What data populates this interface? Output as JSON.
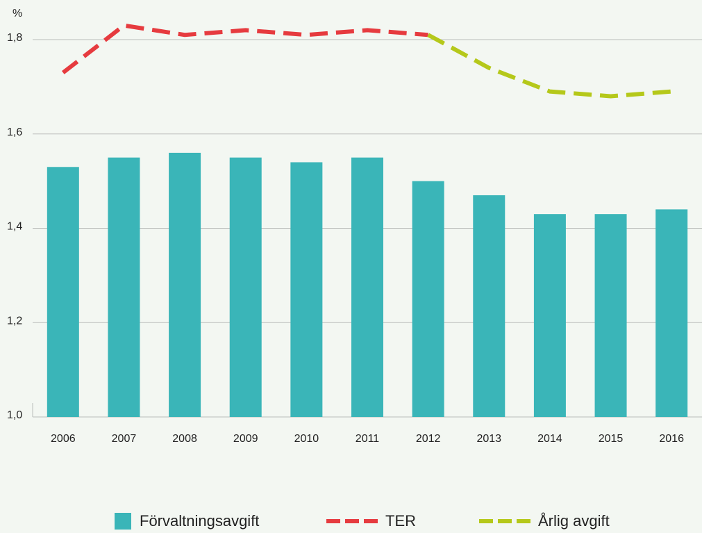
{
  "chart_data": {
    "type": "bar_line",
    "unit_label": "%",
    "categories": [
      "2006",
      "2007",
      "2008",
      "2009",
      "2010",
      "2011",
      "2012",
      "2013",
      "2014",
      "2015",
      "2016"
    ],
    "series": [
      {
        "name": "Förvaltningsavgift",
        "type": "bar",
        "color": "#3ab5b8",
        "values": [
          1.53,
          1.55,
          1.56,
          1.55,
          1.54,
          1.55,
          1.5,
          1.47,
          1.43,
          1.43,
          1.44
        ]
      },
      {
        "name": "TER",
        "type": "line",
        "dashed": true,
        "color": "#e63b3f",
        "values": [
          1.73,
          1.83,
          1.81,
          1.82,
          1.81,
          1.82,
          1.81,
          null,
          null,
          null,
          null
        ]
      },
      {
        "name": "Årlig avgift",
        "type": "line",
        "dashed": true,
        "color": "#b5c81a",
        "values": [
          null,
          null,
          null,
          null,
          null,
          null,
          1.81,
          1.74,
          1.69,
          1.68,
          1.69
        ]
      }
    ],
    "ylim": [
      1.0,
      1.88
    ],
    "yticks": [
      {
        "value": 1.0,
        "label": "1,0"
      },
      {
        "value": 1.2,
        "label": "1,2"
      },
      {
        "value": 1.4,
        "label": "1,4"
      },
      {
        "value": 1.6,
        "label": "1,6"
      },
      {
        "value": 1.8,
        "label": "1,8"
      }
    ],
    "grid": true,
    "legend": "bottom"
  }
}
